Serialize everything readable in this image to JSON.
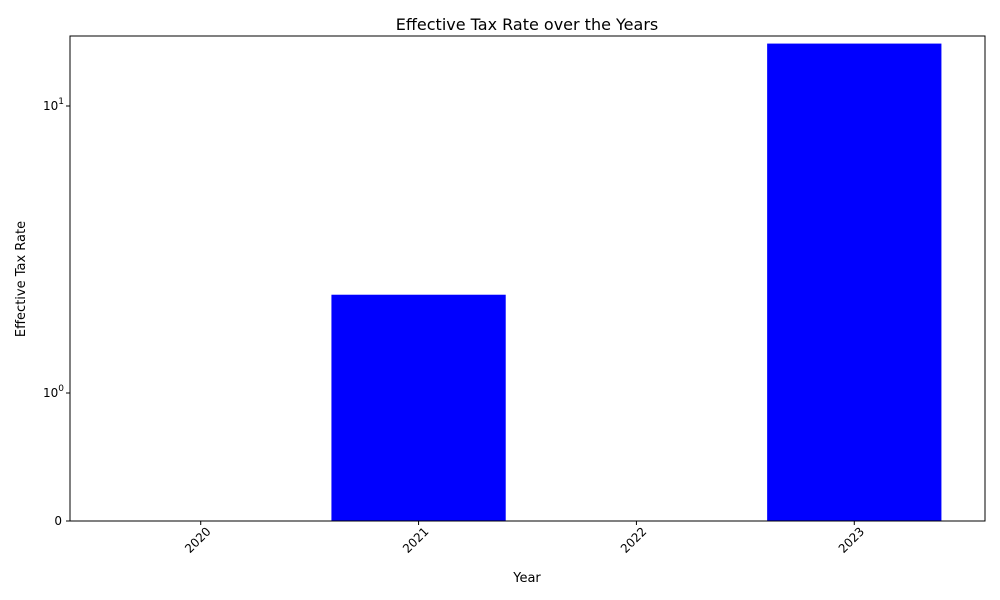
{
  "chart_data": {
    "type": "bar",
    "title": "Effective Tax Rate over the Years",
    "xlabel": "Year",
    "ylabel": "Effective Tax Rate",
    "categories": [
      "2020",
      "2021",
      "2022",
      "2023"
    ],
    "values": [
      0,
      2.2,
      0,
      16.5
    ],
    "bar_color": "#0000ff",
    "y_scale": "symlog",
    "ylim": [
      0,
      16.5
    ],
    "y_ticks": [
      {
        "value": 0,
        "base": "0",
        "exp": ""
      },
      {
        "value": 1,
        "base": "10",
        "exp": "0"
      },
      {
        "value": 10,
        "base": "10",
        "exp": "1"
      }
    ],
    "x_tick_rotation": 45,
    "grid": false,
    "legend": "none"
  }
}
